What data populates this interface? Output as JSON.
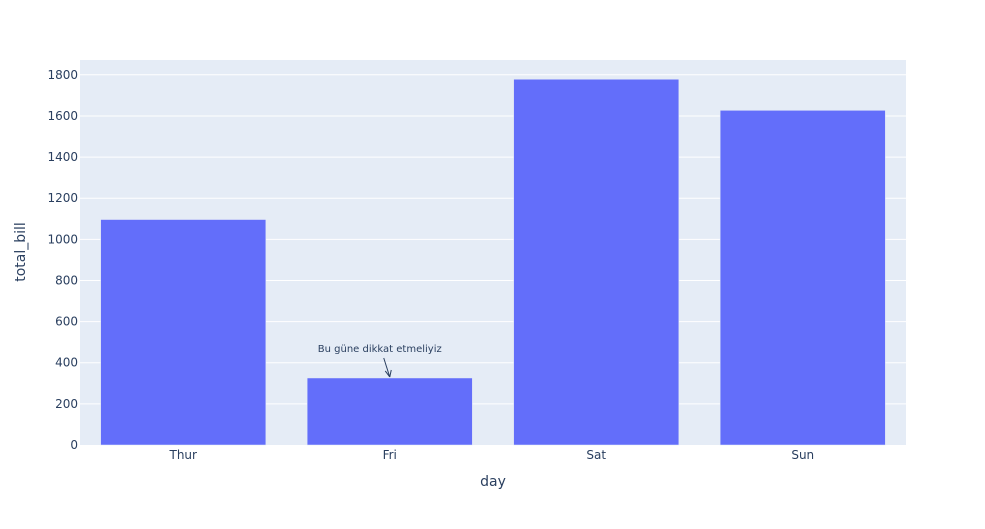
{
  "chart_data": {
    "type": "bar",
    "categories": [
      "Thur",
      "Fri",
      "Sat",
      "Sun"
    ],
    "values": [
      1096.33,
      325.88,
      1778.4,
      1627.16
    ],
    "xlabel": "day",
    "ylabel": "total_bill",
    "ylim": [
      0,
      1872
    ],
    "yticks": [
      0,
      200,
      400,
      600,
      800,
      1000,
      1200,
      1400,
      1600,
      1800
    ],
    "grid": true,
    "bar_color": "#636efa",
    "plot_background": "#e5ecf6",
    "annotations": [
      {
        "category": "Fri",
        "y": 325.88,
        "text": "Bu güne dikkat etmeliyiz"
      }
    ]
  }
}
